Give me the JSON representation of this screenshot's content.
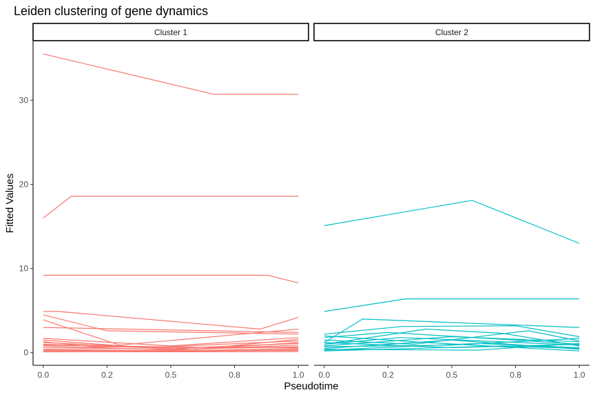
{
  "chart_data": {
    "type": "line",
    "title": "Leiden clustering of gene dynamics",
    "xlabel": "Pseudotime",
    "ylabel": "Fitted Values",
    "ylim": [
      -1.5,
      37
    ],
    "grid": false,
    "legend": "none",
    "colors": {
      "cluster1": "#F8766D",
      "cluster2": "#00BFC4"
    },
    "panels": [
      {
        "name": "Cluster 1",
        "xlim": [
          -0.04,
          1.04
        ],
        "x_ticks": [
          0.0,
          0.25,
          0.5,
          0.75,
          1.0
        ],
        "x_tick_labels": [
          "0.0",
          "0.2",
          "0.5",
          "0.8",
          "1.0"
        ],
        "y_ticks": [
          0,
          10,
          20,
          30
        ],
        "y_tick_labels": [
          "0",
          "10",
          "20",
          "30"
        ],
        "series": [
          {
            "x": [
              0.0,
              0.67,
              1.0
            ],
            "y": [
              35.5,
              30.7,
              30.7
            ]
          },
          {
            "x": [
              0.0,
              0.11,
              1.0
            ],
            "y": [
              16.0,
              18.6,
              18.6
            ]
          },
          {
            "x": [
              0.0,
              0.88,
              1.0
            ],
            "y": [
              9.2,
              9.2,
              8.3
            ]
          },
          {
            "x": [
              0.0,
              0.06,
              0.85,
              1.0
            ],
            "y": [
              4.9,
              4.9,
              2.8,
              4.2
            ]
          },
          {
            "x": [
              0.0,
              0.25,
              1.0
            ],
            "y": [
              4.5,
              2.6,
              2.2
            ]
          },
          {
            "x": [
              0.0,
              0.3,
              1.0
            ],
            "y": [
              3.9,
              0.9,
              2.8
            ]
          },
          {
            "x": [
              0.0,
              1.0
            ],
            "y": [
              3.0,
              2.4
            ]
          },
          {
            "x": [
              0.0,
              0.5,
              1.0
            ],
            "y": [
              1.7,
              0.8,
              1.8
            ]
          },
          {
            "x": [
              0.0,
              0.4,
              1.0
            ],
            "y": [
              1.5,
              0.6,
              1.4
            ]
          },
          {
            "x": [
              0.0,
              0.6,
              1.0
            ],
            "y": [
              1.2,
              0.4,
              1.6
            ]
          },
          {
            "x": [
              0.0,
              0.5,
              1.0
            ],
            "y": [
              1.0,
              0.5,
              1.1
            ]
          },
          {
            "x": [
              0.0,
              0.5,
              1.0
            ],
            "y": [
              0.8,
              0.3,
              0.9
            ]
          },
          {
            "x": [
              0.0,
              0.5,
              1.0
            ],
            "y": [
              0.6,
              0.4,
              0.7
            ]
          },
          {
            "x": [
              0.0,
              0.5,
              1.0
            ],
            "y": [
              0.4,
              0.2,
              0.5
            ]
          },
          {
            "x": [
              0.0,
              0.5,
              1.0
            ],
            "y": [
              0.3,
              0.15,
              0.35
            ]
          },
          {
            "x": [
              0.0,
              1.0
            ],
            "y": [
              0.2,
              0.25
            ]
          },
          {
            "x": [
              0.0,
              1.0
            ],
            "y": [
              0.1,
              0.12
            ]
          },
          {
            "x": [
              0.0,
              0.7,
              1.0
            ],
            "y": [
              0.9,
              0.6,
              1.2
            ]
          },
          {
            "x": [
              0.0,
              0.2,
              1.0
            ],
            "y": [
              1.3,
              0.7,
              0.6
            ]
          }
        ]
      },
      {
        "name": "Cluster 2",
        "xlim": [
          -0.04,
          1.04
        ],
        "x_ticks": [
          0.0,
          0.25,
          0.5,
          0.75,
          1.0
        ],
        "x_tick_labels": [
          "0.0",
          "0.2",
          "0.5",
          "0.8",
          "1.0"
        ],
        "series": [
          {
            "x": [
              0.0,
              0.58,
              1.0
            ],
            "y": [
              15.1,
              18.1,
              13.0
            ]
          },
          {
            "x": [
              0.0,
              0.32,
              1.0
            ],
            "y": [
              4.9,
              6.4,
              6.4
            ]
          },
          {
            "x": [
              0.0,
              0.15,
              1.0
            ],
            "y": [
              1.2,
              4.0,
              3.0
            ]
          },
          {
            "x": [
              0.0,
              0.3,
              0.75,
              1.0
            ],
            "y": [
              2.2,
              3.1,
              3.2,
              1.9
            ]
          },
          {
            "x": [
              0.0,
              0.4,
              0.7,
              1.0
            ],
            "y": [
              1.0,
              2.8,
              2.3,
              0.8
            ]
          },
          {
            "x": [
              0.0,
              0.25,
              0.75,
              1.0
            ],
            "y": [
              1.8,
              2.4,
              1.5,
              1.0
            ]
          },
          {
            "x": [
              0.0,
              0.5,
              1.0
            ],
            "y": [
              0.8,
              1.9,
              1.3
            ]
          },
          {
            "x": [
              0.0,
              0.35,
              0.8,
              1.0
            ],
            "y": [
              1.5,
              1.0,
              2.6,
              1.4
            ]
          },
          {
            "x": [
              0.0,
              0.5,
              1.0
            ],
            "y": [
              0.5,
              1.5,
              0.4
            ]
          },
          {
            "x": [
              0.0,
              0.5,
              1.0
            ],
            "y": [
              1.2,
              0.6,
              1.0
            ]
          },
          {
            "x": [
              0.0,
              0.6,
              1.0
            ],
            "y": [
              0.3,
              1.1,
              0.6
            ]
          },
          {
            "x": [
              0.0,
              0.4,
              1.0
            ],
            "y": [
              2.0,
              1.2,
              0.2
            ]
          },
          {
            "x": [
              0.0,
              0.5,
              1.0
            ],
            "y": [
              0.7,
              0.9,
              1.7
            ]
          },
          {
            "x": [
              0.0,
              0.7,
              1.0
            ],
            "y": [
              0.2,
              0.8,
              0.5
            ]
          },
          {
            "x": [
              0.0,
              0.3,
              1.0
            ],
            "y": [
              1.0,
              1.8,
              0.9
            ]
          },
          {
            "x": [
              0.0,
              0.6,
              1.0
            ],
            "y": [
              0.4,
              0.3,
              1.1
            ]
          }
        ]
      }
    ]
  }
}
